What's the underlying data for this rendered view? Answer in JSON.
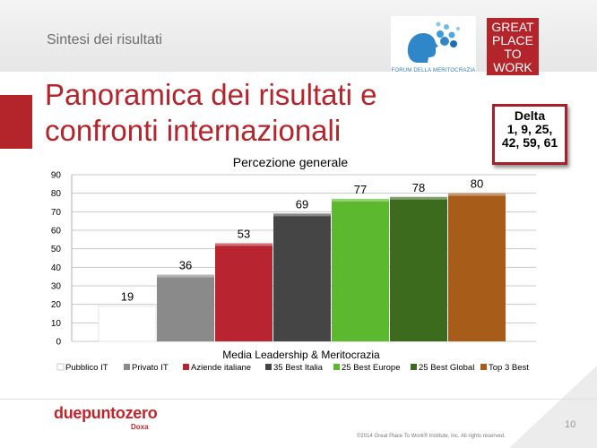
{
  "header": {
    "section": "Sintesi dei risultati",
    "title": "Panoramica dei risultati e confronti internazionali",
    "forum_logo_text": "FORUM DELLA MERITOCRAZIA",
    "gptw_logo_lines": [
      "GREAT",
      "PLACE",
      "TO",
      "WORK"
    ]
  },
  "delta": {
    "heading": "Delta",
    "line1": "1, 9, 25,",
    "line2": "42, 59, 61"
  },
  "chart_data": {
    "type": "bar",
    "title": "Percezione generale",
    "xlabel": "Media Leadership & Meritocrazia",
    "ylabel": "",
    "ylim": [
      0,
      90
    ],
    "yticks": [
      0,
      10,
      20,
      30,
      40,
      50,
      60,
      70,
      80,
      90
    ],
    "grid": true,
    "legend_position": "bottom",
    "categories": [
      "Pubblico IT",
      "Privato IT",
      "Aziende italiane",
      "35 Best Italia",
      "25 Best Europe",
      "25 Best Global",
      "Top 3 Best"
    ],
    "values": [
      19,
      36,
      53,
      69,
      77,
      78,
      80
    ],
    "colors": [
      "#ffffff",
      "#8a8a8a",
      "#b8242f",
      "#454545",
      "#5cb82e",
      "#3c6b1e",
      "#a85c1a"
    ]
  },
  "footer": {
    "brand": "duepuntozero",
    "brand_sub": "Doxa",
    "copyright": "©2014 Great Place To Work® Institute, Inc. All rights reserved.",
    "page": "10"
  }
}
